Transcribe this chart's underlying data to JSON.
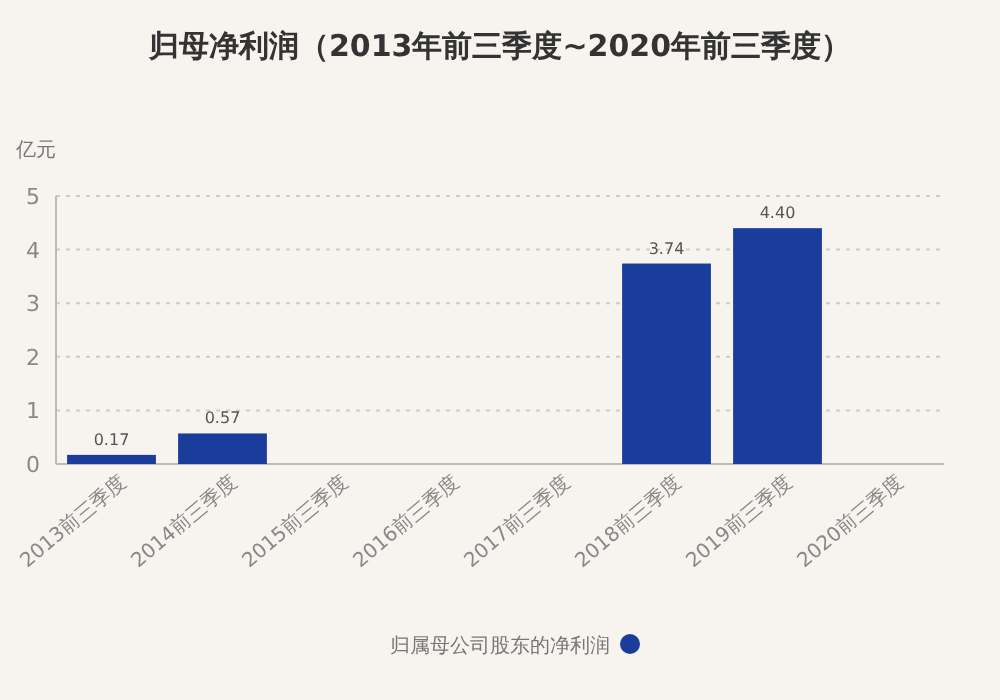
{
  "chart_data": {
    "type": "bar",
    "title": "归母净利润（2013年前三季度~2020年前三季度）",
    "ylabel": "亿元",
    "categories": [
      "2013前三季度",
      "2014前三季度",
      "2015前三季度",
      "2016前三季度",
      "2017前三季度",
      "2018前三季度",
      "2019前三季度",
      "2020前三季度"
    ],
    "series": [
      {
        "name": "归属母公司股东的净利润",
        "color": "#1a3d9c",
        "values": [
          0.17,
          0.57,
          null,
          null,
          null,
          3.74,
          4.4,
          null
        ]
      }
    ],
    "value_labels": [
      "0.17",
      "0.57",
      null,
      null,
      null,
      "3.74",
      "4.40",
      null
    ],
    "ylim": [
      0,
      5
    ],
    "yticks": [
      0,
      1,
      2,
      3,
      4,
      5
    ],
    "grid": "y",
    "legend": "bottom"
  }
}
